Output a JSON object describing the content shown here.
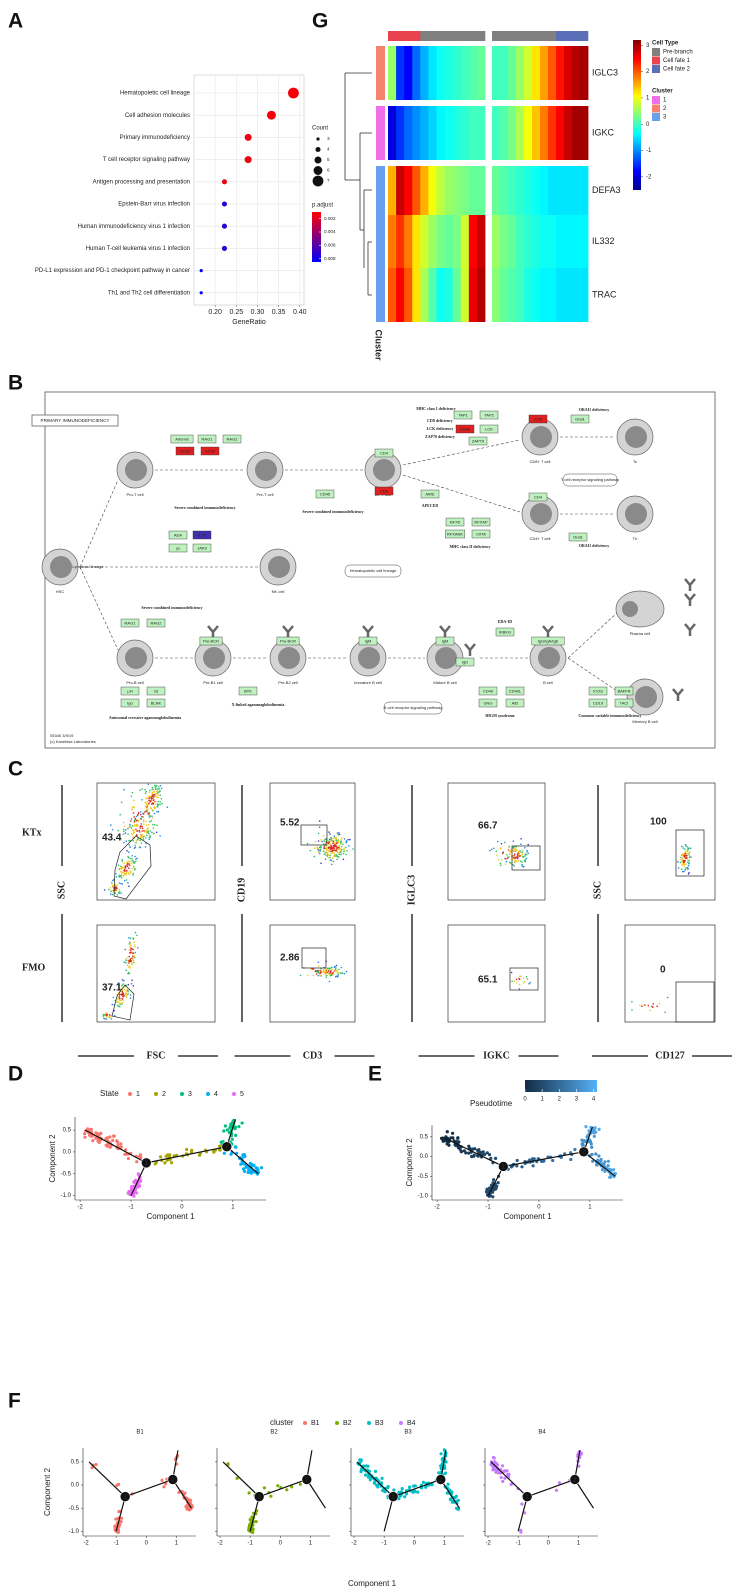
{
  "panel_labels": [
    "A",
    "B",
    "C",
    "D",
    "E",
    "F",
    "G"
  ],
  "chart_data": [
    {
      "type": "dot",
      "categories": [
        "Hematopoietic cell lineage",
        "Cell adhesion molecules",
        "Primary immunodeficiency",
        "T cell receptor signaling pathway",
        "Antigen processing and presentation",
        "Epstein-Barr virus infection",
        "Human immunodeficiency virus 1 infection",
        "Human T-cell leukemia virus 1 infection",
        "PD-L1 expression and PD-1 checkpoint pathway in cancer",
        "Th1 and Th2 cell differentiation"
      ],
      "values": [
        0.385,
        0.333,
        0.278,
        0.278,
        0.222,
        0.222,
        0.222,
        0.222,
        0.167,
        0.167
      ],
      "sizes": [
        7,
        6,
        5,
        5,
        4,
        4,
        4,
        4,
        3,
        3
      ],
      "p_adjust": [
        0.0012,
        0.0013,
        0.0015,
        0.0015,
        0.0016,
        0.0072,
        0.0072,
        0.0072,
        0.0085,
        0.0085
      ],
      "xlabel": "GeneRatio",
      "xlim": [
        0.15,
        0.41
      ],
      "xticks": [
        {
          "value": 0.2,
          "label": "0.20"
        },
        0.25,
        {
          "value": 0.3,
          "label": "0.30"
        },
        0.35,
        {
          "value": 0.4,
          "label": "0.40"
        }
      ],
      "grid": true,
      "size_legend": {
        "title": "Count",
        "values": [
          3,
          4,
          5,
          6,
          7
        ]
      },
      "color_legend": {
        "title": "p.adjust",
        "ticks": [
          0.002,
          0.004,
          0.006,
          0.008
        ],
        "clim": [
          0.001,
          0.0085
        ],
        "colors": [
          "#ff0000",
          "#0000ff"
        ]
      }
    },
    {
      "type": "heatmap",
      "rows": [
        "IGLC3",
        "IGKC",
        "DEFA3",
        "IL332",
        "TRAC"
      ],
      "values": [
        [
          0.5,
          -1.5,
          -1.8,
          -1.2,
          -0.8,
          -0.5,
          -0.3,
          -0.2,
          -0.1,
          0,
          0.1,
          0.2,
          0,
          0,
          0.2,
          0.5,
          0.8,
          1.2,
          1.6,
          2.0,
          2.4,
          2.7,
          2.9,
          3.0
        ],
        [
          -2,
          -1.5,
          -1.2,
          -1.0,
          -0.8,
          -0.6,
          -0.4,
          -0.3,
          -0.2,
          -0.1,
          0,
          0,
          0,
          0.1,
          0.3,
          0.6,
          1.0,
          1.4,
          1.8,
          2.2,
          2.5,
          2.8,
          3.0,
          3.0
        ],
        [
          1.5,
          2.8,
          2.5,
          2.0,
          1.5,
          1.0,
          0.7,
          0.5,
          0.4,
          0.3,
          0.2,
          0.2,
          0.2,
          0.1,
          0,
          -0.1,
          -0.2,
          -0.3,
          -0.4,
          -0.5,
          -0.5,
          -0.5,
          -0.5,
          -0.5
        ],
        [
          1.8,
          2.2,
          1.8,
          1.2,
          0.8,
          0.5,
          0.3,
          0.2,
          0.3,
          0.8,
          2.5,
          2.8,
          0.5,
          0.3,
          0.2,
          0,
          -0.1,
          -0.2,
          -0.3,
          -0.3,
          -0.4,
          -0.4,
          -0.4,
          -0.4
        ],
        [
          2.0,
          2.5,
          2.0,
          1.2,
          0.6,
          0.1,
          -0.3,
          -0.2,
          0.2,
          0.8,
          2.6,
          2.9,
          0.4,
          0.2,
          0.1,
          0,
          -0.2,
          -0.3,
          -0.4,
          -0.4,
          -0.5,
          -0.5,
          -0.5,
          -0.5
        ]
      ],
      "clim": [
        -2.5,
        3.2
      ],
      "colorbar_ticks": [
        3,
        2,
        1,
        0,
        -1,
        -2
      ],
      "column_cell_types": [
        "Cell fate 1",
        "Cell fate 1",
        "Cell fate 1",
        "Cell fate 1",
        "Pre-branch",
        "Pre-branch",
        "Pre-branch",
        "Pre-branch",
        "Pre-branch",
        "Pre-branch",
        "Pre-branch",
        "Pre-branch",
        "Pre-branch",
        "Pre-branch",
        "Pre-branch",
        "Pre-branch",
        "Pre-branch",
        "Pre-branch",
        "Pre-branch",
        "Pre-branch",
        "Cell fate 2",
        "Cell fate 2",
        "Cell fate 2",
        "Cell fate 2"
      ],
      "row_clusters": [
        "2",
        "1",
        "3",
        "3",
        "3"
      ],
      "cell_type_legend": {
        "title": "Cell Type",
        "names": [
          "Pre-branch",
          "Cell fate 1",
          "Cell fate 2"
        ],
        "colors": [
          "#808080",
          "#e8434f",
          "#5a6fb8"
        ]
      },
      "cluster_legend": {
        "title": "Cluster",
        "names": [
          "1",
          "2",
          "3"
        ],
        "colors": [
          "#f06ee8",
          "#f4826c",
          "#6a9ff0"
        ]
      },
      "cluster_label": "Cluster"
    },
    {
      "type": "trajectory",
      "legend_title": "State",
      "series": [
        {
          "name": "1",
          "color": "#F8766D"
        },
        {
          "name": "2",
          "color": "#A3A500"
        },
        {
          "name": "3",
          "color": "#00BF7D"
        },
        {
          "name": "4",
          "color": "#00B0F6"
        },
        {
          "name": "5",
          "color": "#E76BF3"
        }
      ],
      "branch_points": [
        "1",
        "2"
      ],
      "xlabel": "Component 1",
      "ylabel": "Component 2",
      "xlim": [
        -2.1,
        1.65
      ],
      "ylim": [
        -1.1,
        0.8
      ],
      "xticks": [
        -2,
        -1,
        0,
        1
      ],
      "yticks": [
        0.5,
        {
          "value": 0,
          "label": "0.0"
        },
        -0.5,
        {
          "value": -1,
          "label": "-1.0"
        }
      ]
    },
    {
      "type": "trajectory",
      "legend_title": "Pseudotime",
      "colorbar_ticks": [
        0,
        1,
        2,
        3,
        4
      ],
      "clim": [
        0,
        4.2
      ],
      "colors": [
        "#132b43",
        "#56b1f7"
      ],
      "branch_points": [
        "1",
        "2"
      ],
      "xlabel": "Component 1",
      "ylabel": "Component 2",
      "xlim": [
        -2.1,
        1.65
      ],
      "ylim": [
        -1.1,
        0.8
      ],
      "xticks": [
        -2,
        -1,
        0,
        1
      ],
      "yticks": [
        0.5,
        {
          "value": 0,
          "label": "0.0"
        },
        -0.5,
        {
          "value": -1,
          "label": "-1.0"
        }
      ]
    },
    {
      "type": "facet-trajectory",
      "legend_title": "cluster",
      "series": [
        {
          "name": "B1",
          "color": "#F8766D"
        },
        {
          "name": "B2",
          "color": "#7CAE00"
        },
        {
          "name": "B3",
          "color": "#00BFC4"
        },
        {
          "name": "B4",
          "color": "#C77CFF"
        }
      ],
      "branch_points": [
        "1",
        "2"
      ],
      "xlabel": "Component 1",
      "ylabel": "Component 2",
      "xlim": [
        -2.1,
        1.65
      ],
      "ylim": [
        -1.1,
        0.8
      ],
      "xticks": [
        -2,
        -1,
        0,
        1
      ],
      "yticks": [
        0.5,
        {
          "value": 0,
          "label": "0.0"
        },
        -0.5,
        {
          "value": -1,
          "label": "-1.0"
        }
      ]
    }
  ],
  "pathway": {
    "title": "PRIMARY IMMUNODEFICIENCY",
    "cells": [
      "HSC",
      "Pro-T cell",
      "Pre-T cell",
      "DP T cell",
      "CD8+ T cell",
      "Tc",
      "CD4+ T cell",
      "Th",
      "NK cell",
      "Pro-B cell",
      "Pre-B1 cell",
      "Pre-B2 cell",
      "Immature B cell",
      "Mature B cell",
      "B cell",
      "Plasma cell",
      "Memory B cell"
    ],
    "genes": [
      {
        "label": "Artemis",
        "color": "#bff0bf"
      },
      {
        "label": "RAG1",
        "color": "#bff0bf"
      },
      {
        "label": "RAG2",
        "color": "#bff0bf"
      },
      {
        "label": "CD3D",
        "color": "#e02020"
      },
      {
        "label": "CD3E",
        "color": "#e02020"
      },
      {
        "label": "ADA",
        "color": "#bff0bf"
      },
      {
        "label": "IL7R",
        "color": "#4030b0"
      },
      {
        "label": "γc",
        "color": "#bff0bf"
      },
      {
        "label": "JAK3",
        "color": "#bff0bf"
      },
      {
        "label": "CD45",
        "color": "#bff0bf"
      },
      {
        "label": "CD4",
        "color": "#bff0bf"
      },
      {
        "label": "CD8",
        "color": "#e02020"
      },
      {
        "label": "AIRE",
        "color": "#bff0bf"
      },
      {
        "label": "TAP1",
        "color": "#bff0bf"
      },
      {
        "label": "TAP2",
        "color": "#bff0bf"
      },
      {
        "label": "CD8A",
        "color": "#e02020"
      },
      {
        "label": "LCK",
        "color": "#bff0bf"
      },
      {
        "label": "ZAP70",
        "color": "#bff0bf"
      },
      {
        "label": "CD8",
        "color": "#e02020"
      },
      {
        "label": "Orai1",
        "color": "#bff0bf"
      },
      {
        "label": "CD4",
        "color": "#bff0bf"
      },
      {
        "label": "Orai1",
        "color": "#bff0bf"
      },
      {
        "label": "RFX5",
        "color": "#bff0bf"
      },
      {
        "label": "RFXAP",
        "color": "#bff0bf"
      },
      {
        "label": "RFXANK",
        "color": "#bff0bf"
      },
      {
        "label": "CIITA",
        "color": "#bff0bf"
      },
      {
        "label": "RAG1",
        "color": "#bff0bf"
      },
      {
        "label": "RAG2",
        "color": "#bff0bf"
      },
      {
        "label": "Pre-BCR",
        "color": "#bff0bf"
      },
      {
        "label": "Pre-BCR",
        "color": "#bff0bf"
      },
      {
        "label": "μH",
        "color": "#bff0bf"
      },
      {
        "label": "λ5",
        "color": "#bff0bf"
      },
      {
        "label": "Igα",
        "color": "#bff0bf"
      },
      {
        "label": "BLNK",
        "color": "#bff0bf"
      },
      {
        "label": "BTK",
        "color": "#bff0bf"
      },
      {
        "label": "IgM",
        "color": "#bff0bf"
      },
      {
        "label": "IgM",
        "color": "#bff0bf"
      },
      {
        "label": "IgD",
        "color": "#bff0bf"
      },
      {
        "label": "IKBKG",
        "color": "#bff0bf"
      },
      {
        "label": "CD40",
        "color": "#bff0bf"
      },
      {
        "label": "CD40L",
        "color": "#bff0bf"
      },
      {
        "label": "UNG",
        "color": "#bff0bf"
      },
      {
        "label": "AID",
        "color": "#bff0bf"
      },
      {
        "label": "IgG/IgA/IgE",
        "color": "#bff0bf"
      },
      {
        "label": "ICOS",
        "color": "#bff0bf"
      },
      {
        "label": "BAFFR",
        "color": "#bff0bf"
      },
      {
        "label": "CD19",
        "color": "#bff0bf"
      },
      {
        "label": "TACI",
        "color": "#bff0bf"
      }
    ],
    "disease_labels": [
      "Severe combined immunodeficiency",
      "Severe combined immunodeficiency",
      "APECED",
      "MHC class I deficiency",
      "CD8 deficiency",
      "LCK deficiency",
      "ZAP70 deficiency",
      "ORAI1 deficiency",
      "ORAI1 deficiency",
      "MHC class II deficiency",
      "Severe combined immunodeficiency",
      "X-linked agammaglobulinemia",
      "Autosomal recessive agammaglobulinemia",
      "EDA-ID",
      "HIGM syndrome",
      "Common variable immunodeficiency"
    ],
    "pathway_links": [
      "Hematopoietic cell lineage",
      "T cell receptor signaling pathway",
      "B cell receptor signaling pathway"
    ],
    "other_labels": [
      "Lymphoid lineage"
    ],
    "footer": [
      "05340 3/9/19",
      "(c) Kanehisa Laboratories"
    ]
  },
  "flow": {
    "row_labels": [
      "KTx",
      "FMO"
    ],
    "panels": [
      {
        "y_label": "SSC",
        "x_label": "FSC",
        "gates": [
          43.4,
          37.1
        ]
      },
      {
        "y_label": "CD19",
        "x_label": "CD3",
        "gates": [
          5.52,
          2.86
        ]
      },
      {
        "y_label": "IGLC3",
        "x_label": "IGKC",
        "gates": [
          66.7,
          65.1
        ]
      },
      {
        "y_label": "SSC",
        "x_label": "CD127",
        "gates": [
          100,
          0
        ]
      }
    ]
  }
}
